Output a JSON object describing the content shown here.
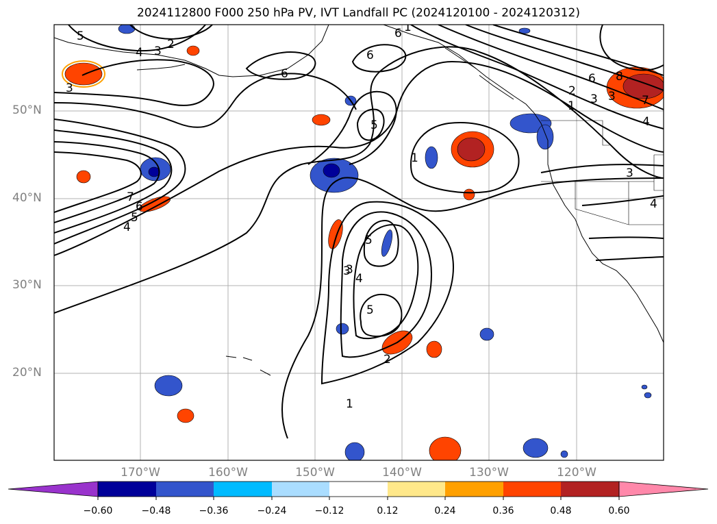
{
  "title": "2024112800 F000 250 hPa PV, IVT Landfall PC (2024120100 - 2024120312)",
  "latitude_labels": [
    "50°N",
    "40°N",
    "30°N",
    "20°N"
  ],
  "longitude_labels": [
    "170°W",
    "160°W",
    "150°W",
    "140°W",
    "130°W",
    "120°W"
  ],
  "colorbar": {
    "tick_labels": [
      "−0.60",
      "−0.48",
      "−0.36",
      "−0.24",
      "−0.12",
      "0.12",
      "0.24",
      "0.36",
      "0.48",
      "0.60"
    ],
    "colors": [
      "#9933cc",
      "#000099",
      "#3355cc",
      "#00bbff",
      "#aaddff",
      "#ffffff",
      "#ffe88a",
      "#ffa000",
      "#ff4400",
      "#b22222",
      "#ff88aa"
    ],
    "extend": "both"
  },
  "contour_labels": [
    "5",
    "4",
    "3",
    "2",
    "3",
    "6",
    "6",
    "6",
    "5",
    "1",
    "3",
    "7",
    "6",
    "5",
    "4",
    "3",
    "5",
    "4",
    "3",
    "5",
    "2",
    "1",
    "6",
    "2",
    "3",
    "1",
    "4",
    "8",
    "7",
    "3",
    "4",
    "1"
  ]
}
